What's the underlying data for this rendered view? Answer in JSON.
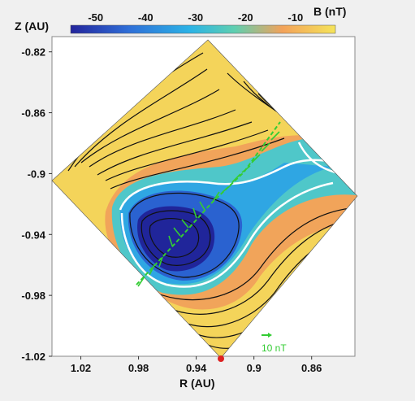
{
  "chart_data": {
    "type": "heatmap",
    "title": "",
    "xlabel": "R (AU)",
    "ylabel": "Z (AU)",
    "x_ticks": [
      "1.02",
      "0.98",
      "0.94",
      "0.9",
      "0.86"
    ],
    "y_ticks": [
      "-0.82",
      "-0.86",
      "-0.9",
      "-0.94",
      "-0.98",
      "-1.02"
    ],
    "x_axis_reversed": true,
    "xlim": [
      1.04,
      0.83
    ],
    "ylim": [
      -1.02,
      -0.81
    ],
    "colorbar": {
      "label": "B (nT)",
      "ticks": [
        "-50",
        "-40",
        "-30",
        "-20",
        "-10"
      ],
      "range": [
        -55,
        -2
      ],
      "colormap": [
        "#23249c",
        "#2f6fd8",
        "#2bb3e6",
        "#5fcfb0",
        "#f3a25a",
        "#f5e45a"
      ]
    },
    "contours": {
      "line_color": "#111111",
      "highlight_color": "#ffffff",
      "highlight_levels": "white contours around the field minimum"
    },
    "trajectory": {
      "color": "#33cc33",
      "description": "spacecraft path with field vectors"
    },
    "scale_arrow_label": "10 nT",
    "marker_color": "#dd2222"
  }
}
